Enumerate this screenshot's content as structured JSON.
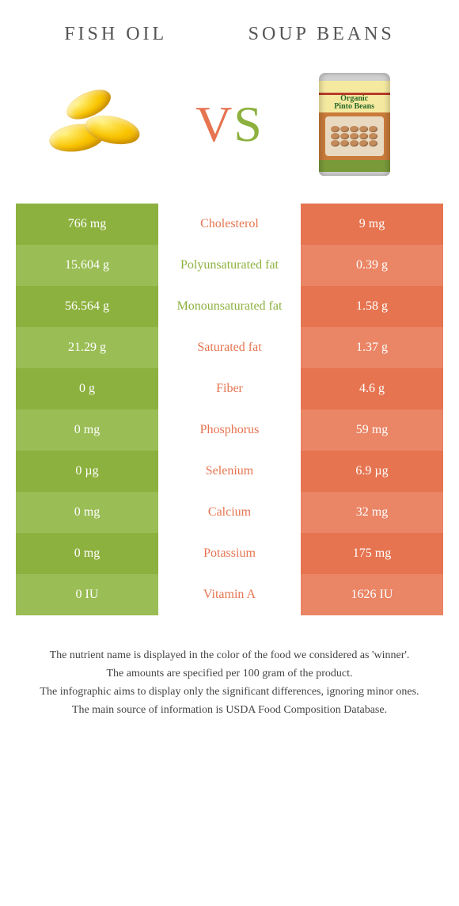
{
  "titles": {
    "left": "Fish oil",
    "right": "Soup beans"
  },
  "vs": {
    "v": "V",
    "s": "S"
  },
  "colors": {
    "green_dark": "#8db13f",
    "green_light": "#9abd55",
    "orange_dark": "#e67450",
    "orange_light": "#ea8565"
  },
  "rows": [
    {
      "left": "766 mg",
      "label": "Cholesterol",
      "right": "9 mg",
      "winner": "orange"
    },
    {
      "left": "15.604 g",
      "label": "Polyunsaturated fat",
      "right": "0.39 g",
      "winner": "green"
    },
    {
      "left": "56.564 g",
      "label": "Monounsaturated fat",
      "right": "1.58 g",
      "winner": "green"
    },
    {
      "left": "21.29 g",
      "label": "Saturated fat",
      "right": "1.37 g",
      "winner": "orange"
    },
    {
      "left": "0 g",
      "label": "Fiber",
      "right": "4.6 g",
      "winner": "orange"
    },
    {
      "left": "0 mg",
      "label": "Phosphorus",
      "right": "59 mg",
      "winner": "orange"
    },
    {
      "left": "0 µg",
      "label": "Selenium",
      "right": "6.9 µg",
      "winner": "orange"
    },
    {
      "left": "0 mg",
      "label": "Calcium",
      "right": "32 mg",
      "winner": "orange"
    },
    {
      "left": "0 mg",
      "label": "Potassium",
      "right": "175 mg",
      "winner": "orange"
    },
    {
      "left": "0 IU",
      "label": "Vitamin A",
      "right": "1626 IU",
      "winner": "orange"
    }
  ],
  "footer": {
    "l1": "The nutrient name is displayed in the color of the food we considered as 'winner'.",
    "l2": "The amounts are specified per 100 gram of the product.",
    "l3": "The infographic aims to display only the significant differences, ignoring minor ones.",
    "l4": "The main source of information is USDA Food Composition Database."
  },
  "can_label": "Organic\nPinto Beans"
}
